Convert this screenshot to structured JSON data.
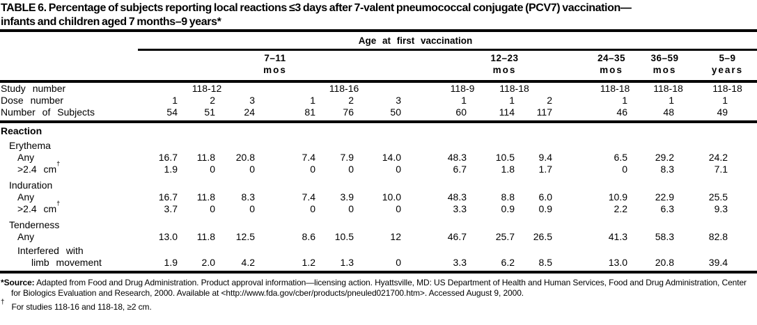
{
  "title": {
    "line1": "TABLE 6. Percentage of subjects reporting local reactions ≤3 days after 7-valent pneumococcal conjugate (PCV7) vaccination—",
    "line2": "infants and children aged 7 months–9 years*"
  },
  "header": {
    "span_label": "Age at first vaccination",
    "age_groups": [
      {
        "range": "7–11",
        "unit": "mos"
      },
      {
        "range": "12–23",
        "unit": "mos"
      },
      {
        "range": "24–35",
        "unit": "mos"
      },
      {
        "range": "36–59",
        "unit": "mos"
      },
      {
        "range": "5–9",
        "unit": "years"
      }
    ]
  },
  "info": {
    "study": {
      "label": "Study number",
      "groups": [
        "118-12",
        "118-16",
        "118-9",
        "118-18",
        "118-18",
        "118-18",
        "118-18"
      ]
    },
    "dose": {
      "label": "Dose number",
      "values": [
        "1",
        "2",
        "3",
        "1",
        "2",
        "3",
        "1",
        "1",
        "2",
        "1",
        "1",
        "1"
      ]
    },
    "subjects": {
      "label": "Number of Subjects",
      "values": [
        "54",
        "51",
        "24",
        "81",
        "76",
        "50",
        "60",
        "114",
        "117",
        "46",
        "48",
        "49"
      ]
    }
  },
  "body": {
    "section_label": "Reaction",
    "erythema": {
      "label": "Erythema",
      "any": {
        "label": "Any",
        "values": [
          "16.7",
          "11.8",
          "20.8",
          "7.4",
          "7.9",
          "14.0",
          "48.3",
          "10.5",
          "9.4",
          "6.5",
          "29.2",
          "24.2"
        ]
      },
      "size": {
        "label": ">2.4 cm",
        "sup": "†",
        "values": [
          "1.9",
          "0",
          "0",
          "0",
          "0",
          "0",
          "6.7",
          "1.8",
          "1.7",
          "0",
          "8.3",
          "7.1"
        ]
      }
    },
    "induration": {
      "label": "Induration",
      "any": {
        "label": "Any",
        "values": [
          "16.7",
          "11.8",
          "8.3",
          "7.4",
          "3.9",
          "10.0",
          "48.3",
          "8.8",
          "6.0",
          "10.9",
          "22.9",
          "25.5"
        ]
      },
      "size": {
        "label": ">2.4 cm",
        "sup": "†",
        "values": [
          "3.7",
          "0",
          "0",
          "0",
          "0",
          "0",
          "3.3",
          "0.9",
          "0.9",
          "2.2",
          "6.3",
          "9.3"
        ]
      }
    },
    "tenderness": {
      "label": "Tenderness",
      "any": {
        "label": "Any",
        "values": [
          "13.0",
          "11.8",
          "12.5",
          "8.6",
          "10.5",
          "12",
          "46.7",
          "25.7",
          "26.5",
          "41.3",
          "58.3",
          "82.8"
        ]
      },
      "limb": {
        "label1": "Interfered with",
        "label2": "limb movement",
        "values": [
          "1.9",
          "2.0",
          "4.2",
          "1.2",
          "1.3",
          "0",
          "3.3",
          "6.2",
          "8.5",
          "13.0",
          "20.8",
          "39.4"
        ]
      }
    }
  },
  "footnotes": {
    "source": {
      "marker": "*",
      "label": "Source:",
      "text": "Adapted from Food and Drug Administration. Product approval information—licensing action. Hyattsville, MD: US Department of Health and Human Services, Food and Drug Administration, Center for Biologics Evaluation and Research, 2000. Available at <http://www.fda.gov/cber/products/pneuled021700.htm>. Accessed August 9, 2000."
    },
    "dagger": {
      "marker": "†",
      "text": "For studies 118-16 and 118-18, ≥2 cm."
    }
  }
}
